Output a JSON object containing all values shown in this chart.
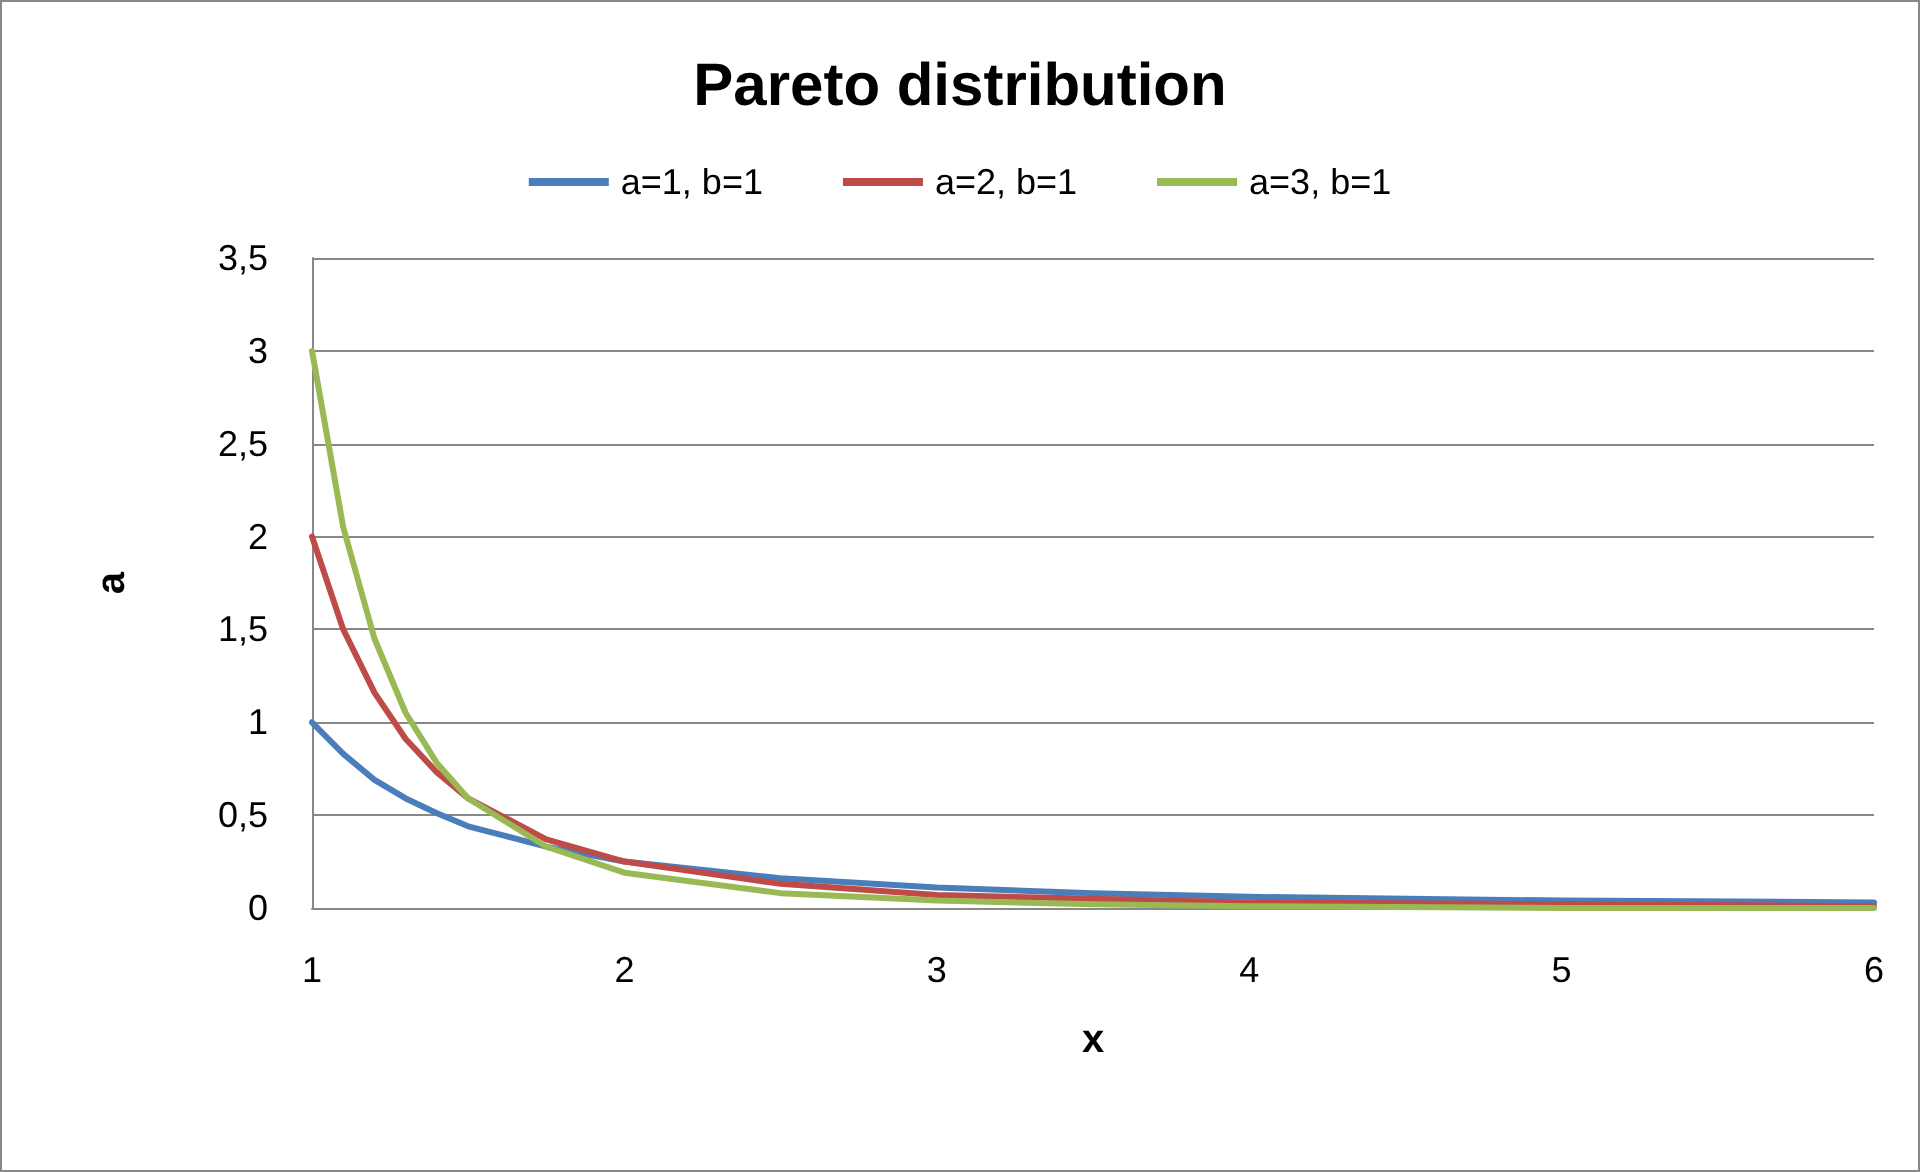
{
  "chart_data": {
    "type": "line",
    "title": "Pareto distribution",
    "xlabel": "x",
    "ylabel": "a",
    "x": [
      1,
      1.1,
      1.2,
      1.3,
      1.4,
      1.5,
      1.75,
      2,
      2.5,
      3,
      3.5,
      4,
      5,
      6
    ],
    "series": [
      {
        "name": "a=1, b=1",
        "color": "#4a7ebb",
        "values": [
          1,
          0.83,
          0.69,
          0.59,
          0.51,
          0.44,
          0.33,
          0.25,
          0.16,
          0.11,
          0.08,
          0.06,
          0.04,
          0.03
        ]
      },
      {
        "name": "a=2, b=1",
        "color": "#be4b48",
        "values": [
          2,
          1.5,
          1.16,
          0.91,
          0.73,
          0.59,
          0.37,
          0.25,
          0.13,
          0.07,
          0.05,
          0.03,
          0.02,
          0.01
        ]
      },
      {
        "name": "a=3, b=1",
        "color": "#98b954",
        "values": [
          3,
          2.05,
          1.45,
          1.05,
          0.78,
          0.59,
          0.33,
          0.19,
          0.08,
          0.04,
          0.02,
          0.01,
          0,
          0
        ]
      }
    ],
    "xlim": [
      1,
      6
    ],
    "xticks": [
      1,
      2,
      3,
      4,
      5,
      6
    ],
    "ylim": [
      0,
      3.5
    ],
    "yticks": [
      0,
      {
        "value": 0.5,
        "label": "0,5"
      },
      1,
      {
        "value": 1.5,
        "label": "1,5"
      },
      2,
      {
        "value": 2.5,
        "label": "2,5"
      },
      3,
      {
        "value": 3.5,
        "label": "3,5"
      }
    ],
    "grid": "y",
    "legend": "top",
    "marker": "none",
    "line_style": "solid"
  }
}
